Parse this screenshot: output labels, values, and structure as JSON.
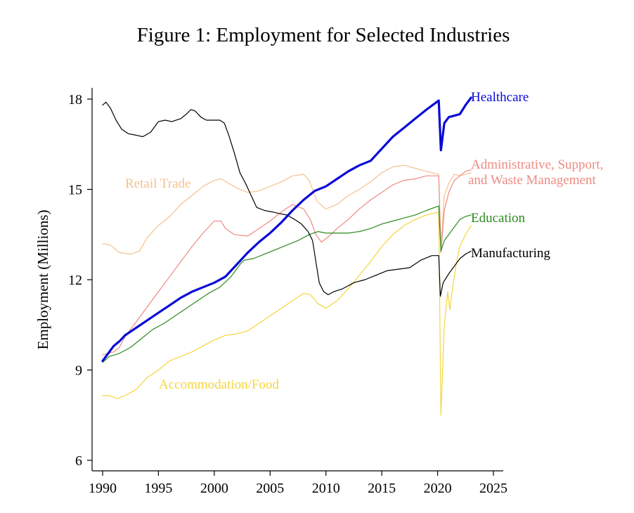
{
  "chart_data": {
    "type": "line",
    "title": "Figure 1: Employment for Selected Industries",
    "xlabel": "",
    "ylabel": "Employment (Millions)",
    "xlim": [
      1990,
      2026
    ],
    "ylim": [
      5.7,
      18.4
    ],
    "xticks": [
      1990,
      1995,
      2000,
      2005,
      2010,
      2015,
      2020,
      2025
    ],
    "yticks": [
      6,
      9,
      12,
      15,
      18
    ],
    "grid": false,
    "legend": "inline labels at line ends",
    "series": [
      {
        "name": "Manufacturing",
        "label": "Manufacturing",
        "color": "#000000",
        "points": [
          [
            1990,
            17.8
          ],
          [
            1990.3,
            17.9
          ],
          [
            1990.7,
            17.7
          ],
          [
            1991.2,
            17.3
          ],
          [
            1991.7,
            17.0
          ],
          [
            1992.3,
            16.85
          ],
          [
            1993,
            16.8
          ],
          [
            1993.6,
            16.75
          ],
          [
            1994.3,
            16.9
          ],
          [
            1995,
            17.25
          ],
          [
            1995.6,
            17.3
          ],
          [
            1996.2,
            17.25
          ],
          [
            1997,
            17.35
          ],
          [
            1997.5,
            17.5
          ],
          [
            1997.9,
            17.65
          ],
          [
            1998.3,
            17.6
          ],
          [
            1998.8,
            17.4
          ],
          [
            1999.3,
            17.3
          ],
          [
            2000,
            17.3
          ],
          [
            2000.5,
            17.3
          ],
          [
            2000.9,
            17.2
          ],
          [
            2001.3,
            16.8
          ],
          [
            2001.8,
            16.2
          ],
          [
            2002.3,
            15.55
          ],
          [
            2002.8,
            15.2
          ],
          [
            2003.3,
            14.8
          ],
          [
            2003.8,
            14.4
          ],
          [
            2004.5,
            14.3
          ],
          [
            2005.2,
            14.25
          ],
          [
            2005.8,
            14.2
          ],
          [
            2006.5,
            14.15
          ],
          [
            2007.2,
            14.0
          ],
          [
            2007.8,
            13.85
          ],
          [
            2008.4,
            13.6
          ],
          [
            2008.8,
            13.3
          ],
          [
            2009.1,
            12.6
          ],
          [
            2009.4,
            11.9
          ],
          [
            2009.8,
            11.6
          ],
          [
            2010.2,
            11.5
          ],
          [
            2010.7,
            11.6
          ],
          [
            2011.5,
            11.7
          ],
          [
            2012.5,
            11.9
          ],
          [
            2013.5,
            12.0
          ],
          [
            2014.5,
            12.15
          ],
          [
            2015.5,
            12.3
          ],
          [
            2016.5,
            12.35
          ],
          [
            2017.5,
            12.4
          ],
          [
            2018.5,
            12.65
          ],
          [
            2019.5,
            12.8
          ],
          [
            2020.1,
            12.8
          ],
          [
            2020.25,
            11.45
          ],
          [
            2020.5,
            11.9
          ],
          [
            2021,
            12.2
          ],
          [
            2021.5,
            12.45
          ],
          [
            2022,
            12.7
          ],
          [
            2022.5,
            12.85
          ],
          [
            2023,
            12.95
          ]
        ]
      },
      {
        "name": "Healthcare",
        "label": "Healthcare",
        "color": "#0a0ad8",
        "points": [
          [
            1990,
            9.3
          ],
          [
            1990.5,
            9.55
          ],
          [
            1991,
            9.8
          ],
          [
            1991.5,
            9.95
          ],
          [
            1992,
            10.15
          ],
          [
            1993,
            10.4
          ],
          [
            1994,
            10.65
          ],
          [
            1995,
            10.9
          ],
          [
            1996,
            11.15
          ],
          [
            1997,
            11.4
          ],
          [
            1998,
            11.6
          ],
          [
            1999,
            11.75
          ],
          [
            2000,
            11.9
          ],
          [
            2001,
            12.1
          ],
          [
            2002,
            12.5
          ],
          [
            2003,
            12.9
          ],
          [
            2004,
            13.25
          ],
          [
            2005,
            13.55
          ],
          [
            2006,
            13.9
          ],
          [
            2007,
            14.3
          ],
          [
            2008,
            14.65
          ],
          [
            2009,
            14.95
          ],
          [
            2010,
            15.1
          ],
          [
            2011,
            15.35
          ],
          [
            2012,
            15.6
          ],
          [
            2013,
            15.8
          ],
          [
            2014,
            15.95
          ],
          [
            2015,
            16.35
          ],
          [
            2016,
            16.75
          ],
          [
            2017,
            17.05
          ],
          [
            2018,
            17.35
          ],
          [
            2019,
            17.65
          ],
          [
            2020.1,
            17.95
          ],
          [
            2020.3,
            16.3
          ],
          [
            2020.6,
            17.2
          ],
          [
            2021,
            17.4
          ],
          [
            2021.5,
            17.45
          ],
          [
            2022,
            17.5
          ],
          [
            2022.5,
            17.8
          ],
          [
            2023,
            18.05
          ]
        ]
      },
      {
        "name": "Administrative, Support, and Waste Management",
        "label": [
          "Administrative, Support,",
          "and Waste Management"
        ],
        "color": "#ee8b83",
        "points": [
          [
            1990,
            9.5
          ],
          [
            1990.5,
            9.55
          ],
          [
            1991,
            9.6
          ],
          [
            1991.5,
            9.75
          ],
          [
            1992,
            10.1
          ],
          [
            1993,
            10.6
          ],
          [
            1994,
            11.1
          ],
          [
            1995,
            11.6
          ],
          [
            1996,
            12.1
          ],
          [
            1997,
            12.6
          ],
          [
            1998,
            13.1
          ],
          [
            1999,
            13.55
          ],
          [
            2000,
            13.95
          ],
          [
            2000.6,
            13.95
          ],
          [
            2001,
            13.7
          ],
          [
            2001.8,
            13.5
          ],
          [
            2003,
            13.45
          ],
          [
            2004,
            13.7
          ],
          [
            2005,
            13.95
          ],
          [
            2006,
            14.25
          ],
          [
            2007,
            14.5
          ],
          [
            2008,
            14.35
          ],
          [
            2008.6,
            14.0
          ],
          [
            2009.1,
            13.5
          ],
          [
            2009.6,
            13.25
          ],
          [
            2010.3,
            13.45
          ],
          [
            2011,
            13.7
          ],
          [
            2012,
            14.0
          ],
          [
            2013,
            14.35
          ],
          [
            2014,
            14.65
          ],
          [
            2015,
            14.9
          ],
          [
            2016,
            15.15
          ],
          [
            2017,
            15.3
          ],
          [
            2018,
            15.35
          ],
          [
            2019,
            15.45
          ],
          [
            2020.1,
            15.45
          ],
          [
            2020.3,
            12.9
          ],
          [
            2020.6,
            14.3
          ],
          [
            2021,
            14.9
          ],
          [
            2021.5,
            15.3
          ],
          [
            2022,
            15.45
          ],
          [
            2022.5,
            15.6
          ],
          [
            2023,
            15.65
          ]
        ]
      },
      {
        "name": "Retail Trade",
        "label": "Retail Trade",
        "color": "#f5c18d",
        "points": [
          [
            1990,
            13.2
          ],
          [
            1990.7,
            13.15
          ],
          [
            1991.5,
            12.9
          ],
          [
            1992.5,
            12.85
          ],
          [
            1993.3,
            12.95
          ],
          [
            1994,
            13.4
          ],
          [
            1995,
            13.8
          ],
          [
            1996,
            14.1
          ],
          [
            1997,
            14.5
          ],
          [
            1998,
            14.8
          ],
          [
            1999,
            15.1
          ],
          [
            2000,
            15.3
          ],
          [
            2000.6,
            15.35
          ],
          [
            2001.3,
            15.2
          ],
          [
            2002,
            15.05
          ],
          [
            2003,
            14.9
          ],
          [
            2004,
            14.95
          ],
          [
            2005,
            15.1
          ],
          [
            2006,
            15.25
          ],
          [
            2007,
            15.45
          ],
          [
            2008,
            15.5
          ],
          [
            2008.5,
            15.3
          ],
          [
            2009.2,
            14.6
          ],
          [
            2010,
            14.35
          ],
          [
            2011,
            14.5
          ],
          [
            2012,
            14.8
          ],
          [
            2013,
            15.0
          ],
          [
            2014,
            15.25
          ],
          [
            2015,
            15.55
          ],
          [
            2016,
            15.75
          ],
          [
            2017,
            15.8
          ],
          [
            2018,
            15.7
          ],
          [
            2019,
            15.6
          ],
          [
            2020.1,
            15.5
          ],
          [
            2020.3,
            13.1
          ],
          [
            2020.6,
            14.8
          ],
          [
            2021,
            15.2
          ],
          [
            2021.5,
            15.5
          ],
          [
            2022,
            15.45
          ],
          [
            2022.5,
            15.5
          ],
          [
            2023,
            15.55
          ]
        ]
      },
      {
        "name": "Education",
        "label": "Education",
        "color": "#2c8a1e",
        "points": [
          [
            1990,
            9.25
          ],
          [
            1990.6,
            9.45
          ],
          [
            1991.5,
            9.55
          ],
          [
            1992.5,
            9.75
          ],
          [
            1993.5,
            10.05
          ],
          [
            1994.5,
            10.35
          ],
          [
            1995.5,
            10.55
          ],
          [
            1996.5,
            10.8
          ],
          [
            1997.5,
            11.05
          ],
          [
            1998.5,
            11.3
          ],
          [
            1999.5,
            11.55
          ],
          [
            2000.5,
            11.75
          ],
          [
            2001.5,
            12.1
          ],
          [
            2002.4,
            12.55
          ],
          [
            2002.7,
            12.65
          ],
          [
            2003.5,
            12.7
          ],
          [
            2004.5,
            12.85
          ],
          [
            2005.5,
            13.0
          ],
          [
            2006.5,
            13.15
          ],
          [
            2007.5,
            13.3
          ],
          [
            2008.5,
            13.5
          ],
          [
            2009.3,
            13.6
          ],
          [
            2010,
            13.55
          ],
          [
            2011,
            13.55
          ],
          [
            2012,
            13.55
          ],
          [
            2013,
            13.6
          ],
          [
            2014,
            13.7
          ],
          [
            2015,
            13.85
          ],
          [
            2016,
            13.95
          ],
          [
            2017,
            14.05
          ],
          [
            2018,
            14.15
          ],
          [
            2019,
            14.3
          ],
          [
            2020.1,
            14.45
          ],
          [
            2020.3,
            12.95
          ],
          [
            2020.6,
            13.3
          ],
          [
            2021,
            13.5
          ],
          [
            2021.5,
            13.75
          ],
          [
            2022,
            14.0
          ],
          [
            2022.5,
            14.1
          ],
          [
            2023,
            14.15
          ]
        ]
      },
      {
        "name": "Accommodation/Food",
        "label": "Accommodation/Food",
        "color": "#f6d53d",
        "points": [
          [
            1990,
            8.15
          ],
          [
            1990.6,
            8.15
          ],
          [
            1991.3,
            8.05
          ],
          [
            1992,
            8.15
          ],
          [
            1993,
            8.35
          ],
          [
            1994,
            8.75
          ],
          [
            1995,
            9.0
          ],
          [
            1996,
            9.3
          ],
          [
            1997,
            9.45
          ],
          [
            1998,
            9.6
          ],
          [
            1999,
            9.8
          ],
          [
            2000,
            10.0
          ],
          [
            2001,
            10.15
          ],
          [
            2002,
            10.2
          ],
          [
            2003,
            10.3
          ],
          [
            2004,
            10.55
          ],
          [
            2005,
            10.8
          ],
          [
            2006,
            11.05
          ],
          [
            2007,
            11.3
          ],
          [
            2008,
            11.55
          ],
          [
            2008.6,
            11.5
          ],
          [
            2009.3,
            11.2
          ],
          [
            2010,
            11.05
          ],
          [
            2011,
            11.3
          ],
          [
            2012,
            11.7
          ],
          [
            2013,
            12.15
          ],
          [
            2014,
            12.6
          ],
          [
            2015,
            13.1
          ],
          [
            2016,
            13.5
          ],
          [
            2017,
            13.8
          ],
          [
            2018,
            14.0
          ],
          [
            2019,
            14.15
          ],
          [
            2020.1,
            14.25
          ],
          [
            2020.3,
            7.5
          ],
          [
            2020.6,
            10.5
          ],
          [
            2020.9,
            11.6
          ],
          [
            2021.1,
            11.0
          ],
          [
            2021.4,
            11.9
          ],
          [
            2021.7,
            12.6
          ],
          [
            2022,
            13.1
          ],
          [
            2022.5,
            13.5
          ],
          [
            2023,
            13.8
          ]
        ]
      }
    ]
  }
}
